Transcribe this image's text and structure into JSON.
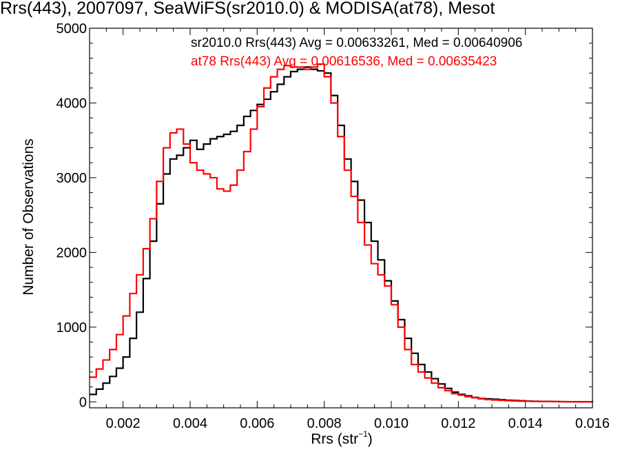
{
  "chart_data": {
    "type": "line",
    "step": true,
    "title": "Rrs(443), 2007097, SeaWiFS(sr2010.0) & MODISA(at78), Mesot",
    "xlabel_text": "Rrs (str",
    "xlabel_sup": "−1",
    "xlabel_close": ")",
    "ylabel": "Number of Observations",
    "xlim": [
      0.001,
      0.016
    ],
    "ylim": [
      -80,
      5000
    ],
    "xticks": [
      "0.002",
      "0.004",
      "0.006",
      "0.008",
      "0.010",
      "0.012",
      "0.014",
      "0.016"
    ],
    "xtick_values": [
      0.002,
      0.004,
      0.006,
      0.008,
      0.01,
      0.012,
      0.014,
      0.016
    ],
    "yticks": [
      "0",
      "1000",
      "2000",
      "3000",
      "4000",
      "5000"
    ],
    "ytick_values": [
      0,
      1000,
      2000,
      3000,
      4000,
      5000
    ],
    "legend_placement": "top-right",
    "series": [
      {
        "name": "sr2010.0",
        "label": "sr2010.0 Rrs(443) Avg = 0.00633261, Med = 0.00640906",
        "color": "#000000",
        "x": [
          0.001,
          0.0012,
          0.0014,
          0.0016,
          0.0018,
          0.002,
          0.0022,
          0.0024,
          0.0026,
          0.0028,
          0.003,
          0.0032,
          0.0034,
          0.0036,
          0.0038,
          0.004,
          0.0042,
          0.0044,
          0.0046,
          0.0048,
          0.005,
          0.0052,
          0.0054,
          0.0056,
          0.0058,
          0.006,
          0.0062,
          0.0064,
          0.0066,
          0.0068,
          0.007,
          0.0072,
          0.0074,
          0.0076,
          0.0078,
          0.008,
          0.0082,
          0.0084,
          0.0086,
          0.0088,
          0.009,
          0.0092,
          0.0094,
          0.0096,
          0.0098,
          0.01,
          0.0102,
          0.0104,
          0.0106,
          0.0108,
          0.011,
          0.0112,
          0.0114,
          0.0116,
          0.0118,
          0.012,
          0.0122,
          0.0124,
          0.0126,
          0.0128,
          0.013,
          0.0132,
          0.0134,
          0.0136,
          0.0138,
          0.014,
          0.0142,
          0.0144,
          0.0146,
          0.0148,
          0.015,
          0.0152,
          0.0154,
          0.0156,
          0.0158,
          0.016
        ],
        "y": [
          100,
          170,
          250,
          340,
          450,
          600,
          850,
          1200,
          1650,
          2150,
          2650,
          3050,
          3250,
          3300,
          3400,
          3500,
          3380,
          3450,
          3520,
          3550,
          3580,
          3620,
          3700,
          3820,
          3900,
          3980,
          4050,
          4150,
          4250,
          4350,
          4420,
          4450,
          4480,
          4450,
          4430,
          4400,
          4100,
          3700,
          3250,
          2950,
          2700,
          2400,
          2150,
          1900,
          1620,
          1350,
          1100,
          850,
          650,
          500,
          400,
          310,
          240,
          180,
          130,
          100,
          80,
          60,
          45,
          40,
          35,
          28,
          22,
          18,
          15,
          10,
          8,
          6,
          5,
          4,
          3,
          2,
          2,
          1,
          1,
          0
        ]
      },
      {
        "name": "at78",
        "label": "at78 Rrs(443) Avg = 0.00616536, Med = 0.00635423",
        "color": "#ff0000",
        "x": [
          0.001,
          0.0012,
          0.0014,
          0.0016,
          0.0018,
          0.002,
          0.0022,
          0.0024,
          0.0026,
          0.0028,
          0.003,
          0.0032,
          0.0034,
          0.0036,
          0.0038,
          0.004,
          0.0042,
          0.0044,
          0.0046,
          0.0048,
          0.005,
          0.0052,
          0.0054,
          0.0056,
          0.0058,
          0.006,
          0.0062,
          0.0064,
          0.0066,
          0.0068,
          0.007,
          0.0072,
          0.0074,
          0.0076,
          0.0078,
          0.008,
          0.0082,
          0.0084,
          0.0086,
          0.0088,
          0.009,
          0.0092,
          0.0094,
          0.0096,
          0.0098,
          0.01,
          0.0102,
          0.0104,
          0.0106,
          0.0108,
          0.011,
          0.0112,
          0.0114,
          0.0116,
          0.0118,
          0.012,
          0.0122,
          0.0124,
          0.0126,
          0.0128,
          0.013,
          0.0132,
          0.0134,
          0.0136,
          0.0138,
          0.014,
          0.0142,
          0.0144,
          0.0146,
          0.0148,
          0.015,
          0.0152,
          0.0154,
          0.0156,
          0.0158,
          0.016
        ],
        "y": [
          330,
          440,
          560,
          700,
          900,
          1150,
          1450,
          1700,
          2050,
          2450,
          2950,
          3400,
          3600,
          3650,
          3450,
          3200,
          3100,
          3050,
          3000,
          2850,
          2820,
          2900,
          3100,
          3350,
          3650,
          3950,
          4200,
          4350,
          4450,
          4500,
          4480,
          4480,
          4450,
          4480,
          4520,
          4350,
          4000,
          3550,
          3100,
          2750,
          2400,
          2100,
          1850,
          1700,
          1550,
          1300,
          1000,
          700,
          500,
          400,
          320,
          250,
          190,
          150,
          110,
          90,
          70,
          55,
          40,
          30,
          25,
          20,
          16,
          12,
          10,
          8,
          6,
          5,
          4,
          3,
          2,
          2,
          1,
          1,
          1,
          0
        ]
      }
    ]
  }
}
